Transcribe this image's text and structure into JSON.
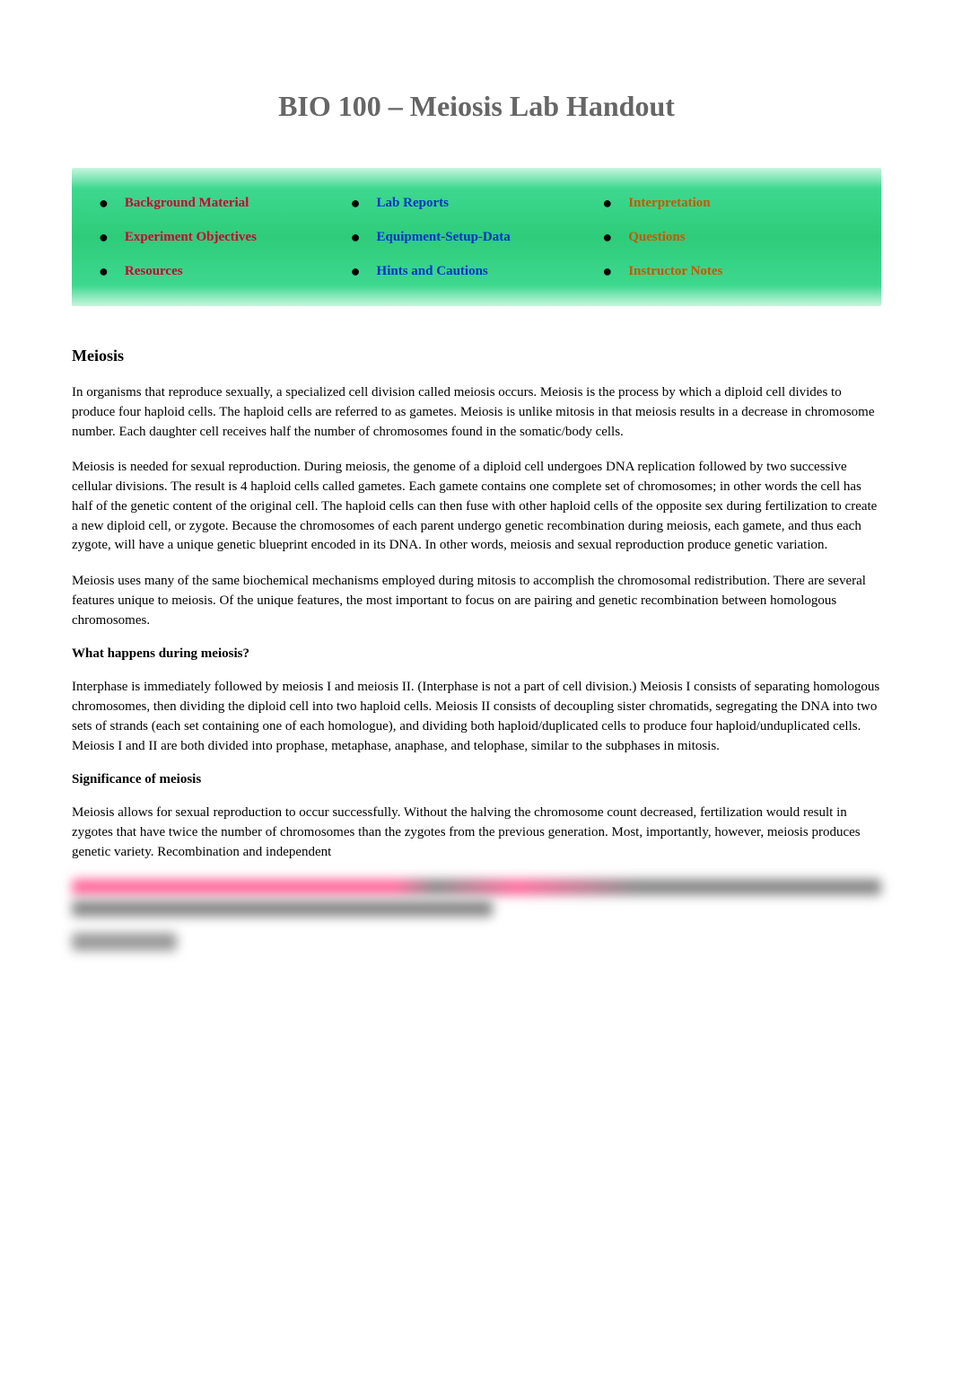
{
  "title": "BIO 100 – Meiosis Lab Handout",
  "nav": {
    "rows": [
      [
        {
          "label": "Background Material",
          "color": "#cc0033"
        },
        {
          "label": "Lab Reports",
          "color": "#0033cc"
        },
        {
          "label": "Interpretation",
          "color": "#cc5500"
        }
      ],
      [
        {
          "label": "Experiment Objectives",
          "color": "#cc0033"
        },
        {
          "label": "Equipment-Setup-Data",
          "color": "#0033cc"
        },
        {
          "label": "Questions",
          "color": "#cc5500"
        }
      ],
      [
        {
          "label": "Resources",
          "color": "#cc0033"
        },
        {
          "label": "Hints and Cautions",
          "color": "#0033cc"
        },
        {
          "label": "Instructor Notes",
          "color": "#cc5500"
        }
      ]
    ]
  },
  "content": {
    "heading": "Meiosis",
    "p1": "In organisms that reproduce sexually, a specialized cell division called meiosis occurs. Meiosis is the process by which a diploid cell divides to produce four haploid cells. The haploid cells are referred to as gametes. Meiosis is unlike mitosis in that meiosis results in a decrease in chromosome number. Each daughter cell receives half the number of chromosomes found in the somatic/body cells.",
    "p2": "Meiosis is needed for sexual reproduction. During meiosis, the genome of a diploid cell undergoes DNA replication followed by two successive cellular divisions. The result is 4 haploid cells called gametes. Each gamete contains one complete set of chromosomes; in other words the cell has half of the genetic content of the original cell. The haploid cells can then fuse with other haploid cells of the opposite sex during fertilization to create a new diploid cell, or zygote. Because the chromosomes of each parent undergo genetic recombination during meiosis, each gamete, and thus each zygote, will have a unique genetic blueprint encoded in its DNA. In other words, meiosis and sexual reproduction produce genetic variation.",
    "p3": "Meiosis uses many of the same biochemical mechanisms employed during mitosis to accomplish the chromosomal redistribution. There are several features unique to meiosis. Of the unique features, the most important to focus on are pairing and genetic recombination between homologous chromosomes.",
    "sub1": "What happens during meiosis?",
    "p4": "Interphase is immediately followed by meiosis I and meiosis II. (Interphase is not a part of cell division.)  Meiosis I consists of separating homologous chromosomes, then dividing the diploid cell into two haploid cells. Meiosis II consists of decoupling sister chromatids, segregating the DNA into two sets of strands (each set containing one of each homologue), and dividing both haploid/duplicated cells to produce four haploid/unduplicated cells. Meiosis I and II are both divided into prophase, metaphase, anaphase, and telophase, similar to the subphases in mitosis.",
    "sub2": "Significance of meiosis",
    "p5": "Meiosis allows for sexual reproduction to occur successfully. Without the halving the chromosome count decreased, fertilization would result in zygotes that have twice the number of chromosomes than the zygotes from the previous generation. Most, importantly, however, meiosis produces genetic variety. Recombination and independent"
  }
}
